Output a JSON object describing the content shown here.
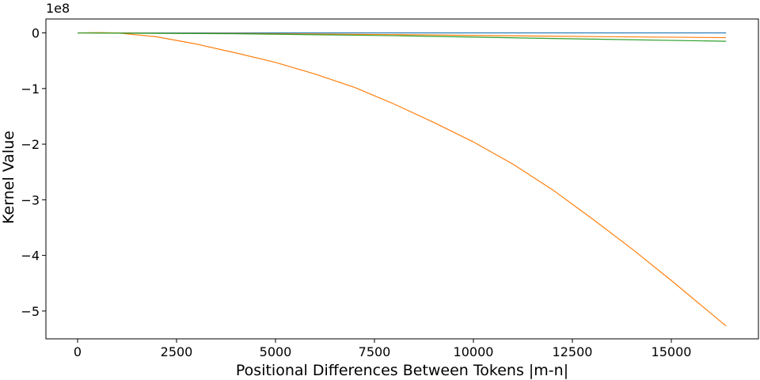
{
  "chart_data": {
    "type": "line",
    "title": "",
    "xlabel": "Positional Differences Between Tokens |m-n|",
    "ylabel": "Kernel Value",
    "offset_text": "1e8",
    "xlim": [
      -800,
      17200
    ],
    "ylim": [
      -5.5,
      0.25
    ],
    "xticks": [
      0,
      2500,
      5000,
      7500,
      10000,
      12500,
      15000
    ],
    "xtick_labels": [
      "0",
      "2500",
      "5000",
      "7500",
      "10000",
      "12500",
      "15000"
    ],
    "yticks": [
      0,
      -1,
      -2,
      -3,
      -4,
      -5
    ],
    "ytick_labels": [
      "0",
      "−1",
      "−2",
      "−3",
      "−4",
      "−5"
    ],
    "grid": false,
    "legend": "none",
    "series": [
      {
        "color": "#1f77b4",
        "x": [
          0,
          16383
        ],
        "y": [
          0,
          0
        ]
      },
      {
        "color": "#ff7f0e",
        "x": [
          0,
          500,
          1000,
          2000,
          3000,
          4000,
          5000,
          6000,
          7000,
          8000,
          9000,
          10000,
          11000,
          12000,
          13000,
          14000,
          15000,
          16383
        ],
        "y": [
          0,
          0.005,
          0.0,
          -0.07,
          -0.2,
          -0.36,
          -0.53,
          -0.74,
          -0.98,
          -1.28,
          -1.61,
          -1.96,
          -2.36,
          -2.82,
          -3.34,
          -3.88,
          -4.45,
          -5.27
        ]
      },
      {
        "color": "#ff7f0e",
        "x": [
          0,
          4000,
          8000,
          12000,
          16383
        ],
        "y": [
          0,
          -0.01,
          -0.03,
          -0.06,
          -0.085
        ]
      },
      {
        "color": "#2ca02c",
        "x": [
          0,
          4000,
          8000,
          12000,
          16383
        ],
        "y": [
          0,
          -0.015,
          -0.05,
          -0.1,
          -0.15
        ]
      }
    ]
  }
}
